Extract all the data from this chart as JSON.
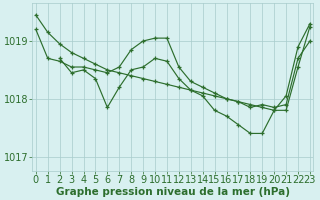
{
  "title": "Graphe pression niveau de la mer (hPa)",
  "bg_color": "#d8f0f0",
  "line_color": "#2d6e2d",
  "grid_color": "#a8cccc",
  "ylim": [
    1016.75,
    1019.65
  ],
  "yticks": [
    1017,
    1018,
    1019
  ],
  "xlim": [
    -0.3,
    23.3
  ],
  "xticks": [
    0,
    1,
    2,
    3,
    4,
    5,
    6,
    7,
    8,
    9,
    10,
    11,
    12,
    13,
    14,
    15,
    16,
    17,
    18,
    19,
    20,
    21,
    22,
    23
  ],
  "series": [
    {
      "x": [
        0,
        1,
        2,
        3,
        4,
        5,
        6,
        7,
        8,
        9,
        10,
        11,
        12,
        13,
        14,
        15,
        16,
        17,
        18,
        19,
        20,
        21,
        22,
        23
      ],
      "y": [
        1019.45,
        1019.15,
        1018.95,
        1018.8,
        1018.7,
        1018.6,
        1018.5,
        1018.45,
        1018.4,
        1018.35,
        1018.3,
        1018.25,
        1018.2,
        1018.15,
        1018.1,
        1018.05,
        1018.0,
        1017.95,
        1017.9,
        1017.85,
        1017.8,
        1018.05,
        1018.9,
        1019.3
      ]
    },
    {
      "x": [
        0,
        1,
        2,
        3,
        4,
        5,
        6,
        7,
        8,
        9,
        10,
        11,
        12,
        13,
        14,
        15,
        16,
        17,
        18,
        19,
        20,
        21,
        22,
        23
      ],
      "y": [
        1019.2,
        1018.7,
        1018.65,
        1018.55,
        1018.55,
        1018.5,
        1018.45,
        1018.55,
        1018.85,
        1019.0,
        1019.05,
        1019.05,
        1018.55,
        1018.3,
        1018.2,
        1018.1,
        1018.0,
        1017.95,
        1017.85,
        1017.9,
        1017.85,
        1017.9,
        1018.7,
        1019.0
      ]
    },
    {
      "x": [
        2,
        3,
        4,
        5,
        6,
        7,
        8,
        9,
        10,
        11,
        12,
        13,
        14,
        15,
        16,
        17,
        18,
        19,
        20,
        21,
        22,
        23
      ],
      "y": [
        1018.7,
        1018.45,
        1018.5,
        1018.35,
        1017.85,
        1018.2,
        1018.5,
        1018.55,
        1018.7,
        1018.65,
        1018.35,
        1018.15,
        1018.05,
        1017.8,
        1017.7,
        1017.55,
        1017.4,
        1017.4,
        1017.8,
        1017.8,
        1018.55,
        1019.25
      ]
    }
  ],
  "xlabel_fontsize": 7.5,
  "tick_fontsize": 7,
  "label_color": "#2d6e2d"
}
